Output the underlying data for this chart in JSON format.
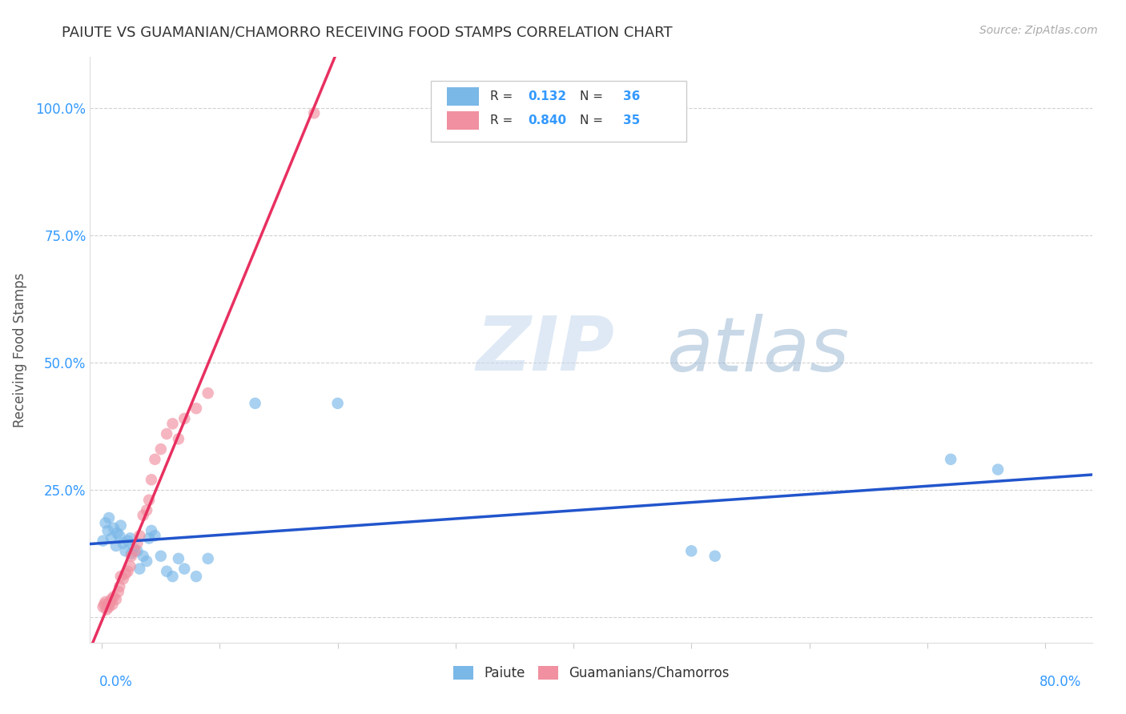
{
  "title": "PAIUTE VS GUAMANIAN/CHAMORRO RECEIVING FOOD STAMPS CORRELATION CHART",
  "source": "Source: ZipAtlas.com",
  "ylabel": "Receiving Food Stamps",
  "y_ticks": [
    0.0,
    0.25,
    0.5,
    0.75,
    1.0
  ],
  "y_tick_labels": [
    "",
    "25.0%",
    "50.0%",
    "75.0%",
    "100.0%"
  ],
  "xlim": [
    -0.01,
    0.84
  ],
  "ylim": [
    -0.05,
    1.1
  ],
  "paiute_color": "#7ab8e8",
  "guamanian_color": "#f090a0",
  "paiute_line_color": "#2255cc",
  "guamanian_line_color": "#e83060",
  "watermark_zip": "ZIP",
  "watermark_atlas": "atlas",
  "paiute_x": [
    0.001,
    0.003,
    0.005,
    0.006,
    0.008,
    0.01,
    0.012,
    0.013,
    0.015,
    0.016,
    0.018,
    0.02,
    0.022,
    0.024,
    0.025,
    0.027,
    0.03,
    0.032,
    0.035,
    0.038,
    0.04,
    0.042,
    0.045,
    0.05,
    0.055,
    0.06,
    0.065,
    0.07,
    0.08,
    0.09,
    0.13,
    0.2,
    0.5,
    0.52,
    0.72,
    0.76
  ],
  "paiute_y": [
    0.15,
    0.185,
    0.17,
    0.195,
    0.155,
    0.175,
    0.14,
    0.165,
    0.16,
    0.18,
    0.145,
    0.13,
    0.15,
    0.155,
    0.125,
    0.135,
    0.13,
    0.095,
    0.12,
    0.11,
    0.155,
    0.17,
    0.16,
    0.12,
    0.09,
    0.08,
    0.115,
    0.095,
    0.08,
    0.115,
    0.42,
    0.42,
    0.13,
    0.12,
    0.31,
    0.29
  ],
  "guamanian_x": [
    0.001,
    0.002,
    0.003,
    0.004,
    0.005,
    0.006,
    0.007,
    0.008,
    0.009,
    0.01,
    0.012,
    0.014,
    0.015,
    0.016,
    0.018,
    0.02,
    0.022,
    0.024,
    0.025,
    0.028,
    0.03,
    0.032,
    0.035,
    0.038,
    0.04,
    0.042,
    0.045,
    0.05,
    0.055,
    0.06,
    0.065,
    0.07,
    0.08,
    0.09,
    0.18
  ],
  "guamanian_y": [
    0.02,
    0.025,
    0.03,
    0.015,
    0.025,
    0.02,
    0.03,
    0.035,
    0.025,
    0.04,
    0.035,
    0.05,
    0.06,
    0.08,
    0.075,
    0.085,
    0.09,
    0.1,
    0.12,
    0.13,
    0.145,
    0.16,
    0.2,
    0.21,
    0.23,
    0.27,
    0.31,
    0.33,
    0.36,
    0.38,
    0.35,
    0.39,
    0.41,
    0.44,
    0.99
  ],
  "legend_R1": "0.132",
  "legend_N1": "36",
  "legend_R2": "0.840",
  "legend_N2": "35"
}
